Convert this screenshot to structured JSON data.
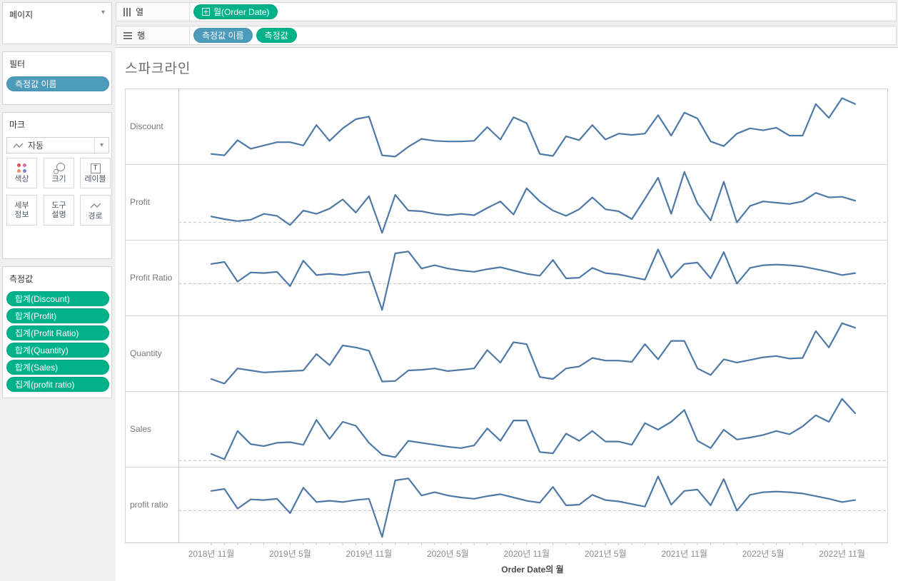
{
  "pages_shelf": {
    "title": "페이지"
  },
  "filters_shelf": {
    "title": "필터",
    "pills": [
      {
        "label": "측정값 이름",
        "color": "blue"
      }
    ]
  },
  "marks_card": {
    "title": "마크",
    "mark_type_label": "자동",
    "mark_type_icon": "line-mark-icon",
    "buttons": [
      {
        "name": "color",
        "label_lines": [
          "색상"
        ],
        "icon": "color-icon"
      },
      {
        "name": "size",
        "label_lines": [
          "크기"
        ],
        "icon": "size-icon"
      },
      {
        "name": "label",
        "label_lines": [
          "레이블"
        ],
        "icon": "label-icon"
      },
      {
        "name": "detail",
        "label_lines": [
          "세부",
          "정보"
        ],
        "icon": null
      },
      {
        "name": "tooltip",
        "label_lines": [
          "도구",
          "설명"
        ],
        "icon": null
      },
      {
        "name": "path",
        "label_lines": [
          "경로"
        ],
        "icon": "path-icon"
      }
    ]
  },
  "measure_values_card": {
    "title": "측정값",
    "pills": [
      "합계(Discount)",
      "합계(Profit)",
      "집계(Profit Ratio)",
      "합계(Quantity)",
      "합계(Sales)",
      "집계(profit ratio)"
    ]
  },
  "columns_shelf": {
    "label": "열",
    "pills": [
      {
        "label": "월(Order Date)",
        "color": "green",
        "plus_icon": true
      }
    ]
  },
  "rows_shelf": {
    "label": "행",
    "pills": [
      {
        "label": "측정값 이름",
        "color": "blue",
        "plus_icon": false
      },
      {
        "label": "측정값",
        "color": "green",
        "plus_icon": false
      }
    ]
  },
  "colors": {
    "pill_green": "#00b189",
    "pill_blue": "#4d9bbb",
    "line": "#4e79a7",
    "grid": "#d4d4d4",
    "ref_line": "#c2c2c2",
    "mark_color_dots": [
      "#e05252",
      "#d16d9e",
      "#ef8d5d",
      "#7386c7"
    ]
  },
  "chart_data": {
    "type": "line",
    "title": "스파크라인",
    "xlabel": "Order Date의 월",
    "x_start_month": "2018-11",
    "x_months_count": 50,
    "x_tick_months": [
      0,
      6,
      12,
      18,
      24,
      30,
      36,
      42,
      48
    ],
    "x_tick_labels": [
      "2018년 11월",
      "2019년 5월",
      "2019년 11월",
      "2020년 5월",
      "2020년 11월",
      "2021년 5월",
      "2021년 11월",
      "2022년 5월",
      "2022년 11월"
    ],
    "y_note": "values are normalized 0-1 of each row height (no numeric y axis shown); zero_line is dashed reference position",
    "legend": "none",
    "grid": "row separators only",
    "series": [
      {
        "label": "Discount",
        "zero_line": null,
        "values": [
          0.09,
          0.07,
          0.3,
          0.17,
          0.22,
          0.27,
          0.27,
          0.22,
          0.53,
          0.29,
          0.48,
          0.62,
          0.66,
          0.07,
          0.05,
          0.2,
          0.32,
          0.29,
          0.28,
          0.28,
          0.29,
          0.5,
          0.31,
          0.65,
          0.56,
          0.09,
          0.06,
          0.36,
          0.3,
          0.53,
          0.31,
          0.4,
          0.38,
          0.4,
          0.68,
          0.37,
          0.72,
          0.63,
          0.28,
          0.21,
          0.4,
          0.48,
          0.45,
          0.49,
          0.37,
          0.37,
          0.85,
          0.64,
          0.94,
          0.85
        ]
      },
      {
        "label": "Profit",
        "zero_line": 0.2,
        "values": [
          0.29,
          0.25,
          0.22,
          0.24,
          0.33,
          0.3,
          0.16,
          0.38,
          0.33,
          0.41,
          0.55,
          0.35,
          0.6,
          0.04,
          0.62,
          0.38,
          0.37,
          0.33,
          0.31,
          0.33,
          0.31,
          0.42,
          0.52,
          0.32,
          0.72,
          0.52,
          0.38,
          0.3,
          0.4,
          0.58,
          0.4,
          0.37,
          0.25,
          0.56,
          0.88,
          0.33,
          0.97,
          0.49,
          0.23,
          0.82,
          0.2,
          0.45,
          0.52,
          0.5,
          0.48,
          0.52,
          0.65,
          0.58,
          0.59,
          0.53
        ]
      },
      {
        "label": "Profit Ratio",
        "zero_line": 0.42,
        "values": [
          0.72,
          0.75,
          0.45,
          0.59,
          0.58,
          0.6,
          0.38,
          0.77,
          0.55,
          0.57,
          0.55,
          0.58,
          0.6,
          0.02,
          0.88,
          0.91,
          0.65,
          0.7,
          0.65,
          0.62,
          0.6,
          0.64,
          0.67,
          0.62,
          0.57,
          0.54,
          0.78,
          0.5,
          0.51,
          0.66,
          0.58,
          0.56,
          0.52,
          0.48,
          0.94,
          0.51,
          0.72,
          0.74,
          0.5,
          0.9,
          0.42,
          0.66,
          0.7,
          0.71,
          0.7,
          0.68,
          0.64,
          0.6,
          0.55,
          0.58
        ]
      },
      {
        "label": "Quantity",
        "zero_line": null,
        "values": [
          0.12,
          0.05,
          0.28,
          0.25,
          0.22,
          0.23,
          0.24,
          0.25,
          0.5,
          0.33,
          0.63,
          0.6,
          0.55,
          0.08,
          0.09,
          0.25,
          0.26,
          0.28,
          0.24,
          0.26,
          0.28,
          0.56,
          0.37,
          0.68,
          0.65,
          0.15,
          0.12,
          0.28,
          0.31,
          0.44,
          0.4,
          0.4,
          0.38,
          0.65,
          0.42,
          0.7,
          0.7,
          0.28,
          0.18,
          0.42,
          0.37,
          0.41,
          0.45,
          0.47,
          0.43,
          0.44,
          0.85,
          0.6,
          0.97,
          0.9
        ]
      },
      {
        "label": "Sales",
        "zero_line": 0.03,
        "values": [
          0.13,
          0.05,
          0.48,
          0.28,
          0.25,
          0.3,
          0.31,
          0.27,
          0.65,
          0.36,
          0.62,
          0.56,
          0.3,
          0.12,
          0.08,
          0.33,
          0.3,
          0.27,
          0.24,
          0.22,
          0.26,
          0.52,
          0.33,
          0.64,
          0.64,
          0.16,
          0.14,
          0.44,
          0.33,
          0.48,
          0.32,
          0.32,
          0.27,
          0.6,
          0.5,
          0.62,
          0.8,
          0.33,
          0.22,
          0.5,
          0.35,
          0.38,
          0.42,
          0.48,
          0.43,
          0.55,
          0.72,
          0.62,
          0.97,
          0.75
        ]
      },
      {
        "label": "profit ratio",
        "zero_line": 0.42,
        "values": [
          0.72,
          0.75,
          0.45,
          0.59,
          0.58,
          0.6,
          0.38,
          0.77,
          0.55,
          0.57,
          0.55,
          0.58,
          0.6,
          0.02,
          0.88,
          0.91,
          0.65,
          0.7,
          0.65,
          0.62,
          0.6,
          0.64,
          0.67,
          0.62,
          0.57,
          0.54,
          0.78,
          0.5,
          0.51,
          0.66,
          0.58,
          0.56,
          0.52,
          0.48,
          0.94,
          0.51,
          0.72,
          0.74,
          0.5,
          0.9,
          0.42,
          0.66,
          0.7,
          0.71,
          0.7,
          0.68,
          0.64,
          0.6,
          0.55,
          0.58
        ]
      }
    ]
  }
}
